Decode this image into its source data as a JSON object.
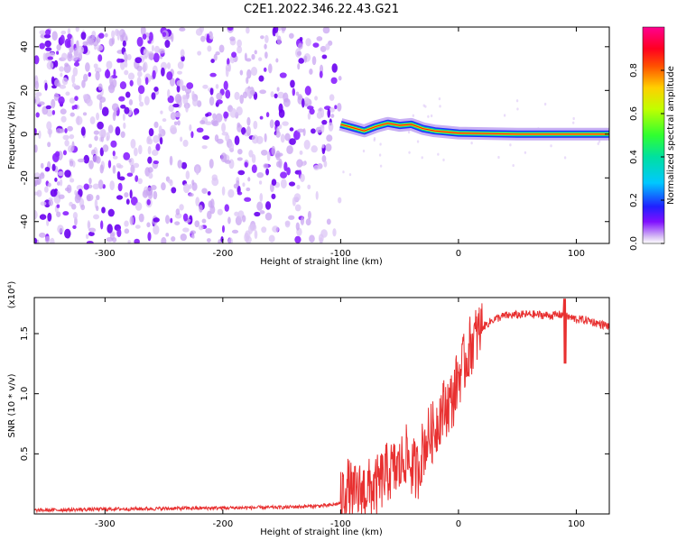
{
  "title": "C2E1.2022.346.22.43.G21",
  "chart_data": [
    {
      "type": "heatmap",
      "xlabel": "Height of straight line (km)",
      "ylabel": "Frequency (Hz)",
      "xlim": [
        -360,
        128
      ],
      "ylim": [
        -50,
        49
      ],
      "x_ticks": [
        -300,
        -200,
        -100,
        0,
        100
      ],
      "y_ticks": [
        -40,
        -20,
        0,
        20,
        40
      ],
      "colorbar": {
        "label": "Normalized spectral amplitude",
        "range": [
          0,
          1
        ],
        "ticks": [
          "0.0",
          "0.2",
          "0.4",
          "0.6",
          "0.8"
        ],
        "colors": [
          "#ffffff",
          "#c8a2f0",
          "#7000ff",
          "#2020ff",
          "#00d0ff",
          "#00e060",
          "#a0ff00",
          "#ffff00",
          "#ff9000",
          "#ff0000",
          "#ff0080"
        ]
      },
      "noise_region": {
        "x_range": [
          -360,
          -100
        ],
        "freq_range": [
          -50,
          49
        ],
        "typical_amplitude": 0.05
      },
      "signal_track": [
        {
          "x": -100,
          "freq": 4.5
        },
        {
          "x": -90,
          "freq": 3.0
        },
        {
          "x": -80,
          "freq": 1.5
        },
        {
          "x": -70,
          "freq": 3.5
        },
        {
          "x": -60,
          "freq": 5.0
        },
        {
          "x": -50,
          "freq": 4.0
        },
        {
          "x": -40,
          "freq": 4.5
        },
        {
          "x": -30,
          "freq": 2.5
        },
        {
          "x": -20,
          "freq": 1.5
        },
        {
          "x": -10,
          "freq": 1.0
        },
        {
          "x": 0,
          "freq": 0.5
        },
        {
          "x": 50,
          "freq": 0.0
        },
        {
          "x": 128,
          "freq": 0.0
        }
      ]
    },
    {
      "type": "line",
      "xlabel": "Height of straight line (km)",
      "ylabel": "SNR (10 * v/v)",
      "y_multiplier": "(x10⁴)",
      "xlim": [
        -360,
        128
      ],
      "ylim": [
        0,
        18000
      ],
      "x_ticks": [
        -300,
        -200,
        -100,
        0,
        100
      ],
      "y_ticks": [
        {
          "value": 5000,
          "label": "0.5"
        },
        {
          "value": 10000,
          "label": "1.0"
        },
        {
          "value": 15000,
          "label": "1.5"
        }
      ],
      "series": [
        {
          "color": "#e83030",
          "x": [
            -360,
            -300,
            -200,
            -150,
            -110,
            -100,
            -95,
            -90,
            -80,
            -70,
            -60,
            -50,
            -45,
            -40,
            -35,
            -30,
            -25,
            -20,
            -15,
            -10,
            -5,
            0,
            5,
            10,
            20,
            30,
            40,
            60,
            80,
            88,
            92,
            100,
            110,
            120,
            128
          ],
          "y": [
            300,
            400,
            500,
            550,
            700,
            900,
            2500,
            1500,
            2000,
            2200,
            3500,
            3800,
            5000,
            4000,
            3500,
            5500,
            6500,
            7000,
            8500,
            9000,
            9500,
            11500,
            12500,
            14000,
            15500,
            16200,
            16500,
            16600,
            16500,
            16600,
            16400,
            16200,
            16100,
            15800,
            15600
          ]
        }
      ]
    }
  ]
}
